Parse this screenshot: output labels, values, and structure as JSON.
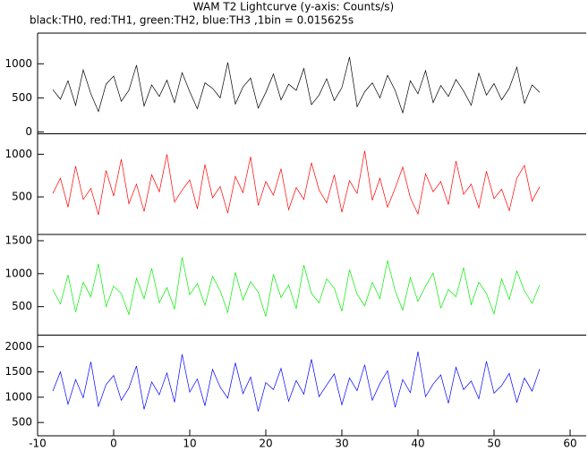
{
  "chart_data": {
    "type": "line",
    "title": "WAM T2 Lightcurve (y-axis: Counts/s)",
    "subtitle": "black:TH0, red:TH1, green:TH2, blue:TH3 ,1bin = 0.015625s",
    "x": [
      -8,
      -7,
      -6,
      -5,
      -4,
      -3,
      -2,
      -1,
      0,
      1,
      2,
      3,
      4,
      5,
      6,
      7,
      8,
      9,
      10,
      11,
      12,
      13,
      14,
      15,
      16,
      17,
      18,
      19,
      20,
      21,
      22,
      23,
      24,
      25,
      26,
      27,
      28,
      29,
      30,
      31,
      32,
      33,
      34,
      35,
      36,
      37,
      38,
      39,
      40,
      41,
      42,
      43,
      44,
      45,
      46,
      47,
      48,
      49,
      50,
      51,
      52,
      53,
      54,
      55,
      56
    ],
    "xlim": [
      -10,
      60
    ],
    "xticks": [
      -10,
      0,
      10,
      20,
      30,
      40,
      50,
      60
    ],
    "series": [
      {
        "color": "#000000",
        "ylim": [
          -27,
          1450
        ],
        "yticks": [
          0,
          500,
          1000
        ],
        "values": [
          620,
          480,
          750,
          390,
          910,
          560,
          300,
          700,
          820,
          450,
          610,
          980,
          380,
          690,
          520,
          760,
          430,
          870,
          590,
          340,
          720,
          640,
          500,
          1020,
          410,
          660,
          790,
          350,
          580,
          850,
          470,
          700,
          610,
          930,
          400,
          540,
          780,
          460,
          650,
          1100,
          370,
          590,
          720,
          500,
          830,
          610,
          280,
          750,
          560,
          900,
          430,
          680,
          520,
          770,
          600,
          390,
          860,
          540,
          710,
          470,
          640,
          950,
          420,
          690,
          580
        ]
      },
      {
        "color": "#ff0000",
        "ylim": [
          60,
          1240
        ],
        "yticks": [
          500,
          1000
        ],
        "values": [
          540,
          720,
          380,
          860,
          470,
          600,
          290,
          810,
          510,
          940,
          420,
          650,
          330,
          760,
          560,
          1000,
          440,
          580,
          700,
          360,
          880,
          490,
          620,
          310,
          740,
          550,
          970,
          400,
          680,
          520,
          830,
          350,
          610,
          470,
          900,
          580,
          430,
          760,
          320,
          690,
          540,
          1040,
          460,
          720,
          380,
          600,
          850,
          490,
          300,
          770,
          560,
          680,
          410,
          920,
          530,
          650,
          370,
          800,
          480,
          590,
          340,
          720,
          870,
          450,
          620
        ]
      },
      {
        "color": "#00ee00",
        "ylim": [
          68,
          1595
        ],
        "yticks": [
          500,
          1000,
          1500
        ],
        "values": [
          760,
          540,
          980,
          420,
          870,
          650,
          1150,
          500,
          810,
          700,
          380,
          930,
          620,
          1080,
          560,
          790,
          460,
          1250,
          680,
          850,
          520,
          960,
          740,
          410,
          1020,
          600,
          880,
          720,
          350,
          990,
          640,
          830,
          470,
          1130,
          700,
          560,
          920,
          780,
          430,
          1060,
          690,
          510,
          870,
          620,
          1200,
          740,
          450,
          940,
          580,
          810,
          1010,
          480,
          760,
          650,
          1090,
          530,
          870,
          700,
          390,
          920,
          610,
          1040,
          740,
          550,
          830
        ]
      },
      {
        "color": "#0000ff",
        "ylim": [
          237,
          2228
        ],
        "yticks": [
          500,
          1000,
          1500,
          2000
        ],
        "values": [
          1120,
          1500,
          860,
          1350,
          990,
          1700,
          820,
          1250,
          1430,
          940,
          1180,
          1620,
          760,
          1300,
          1050,
          1480,
          900,
          1850,
          1100,
          1360,
          830,
          1550,
          1200,
          980,
          1680,
          1070,
          1400,
          720,
          1290,
          1150,
          1570,
          920,
          1330,
          1060,
          1750,
          1010,
          1240,
          1460,
          850,
          1380,
          1130,
          1640,
          940,
          1270,
          1520,
          800,
          1350,
          1090,
          1900,
          1010,
          1260,
          1440,
          880,
          1590,
          1150,
          1320,
          970,
          1710,
          1080,
          1230,
          1470,
          900,
          1380,
          1120,
          1560
        ]
      }
    ]
  }
}
